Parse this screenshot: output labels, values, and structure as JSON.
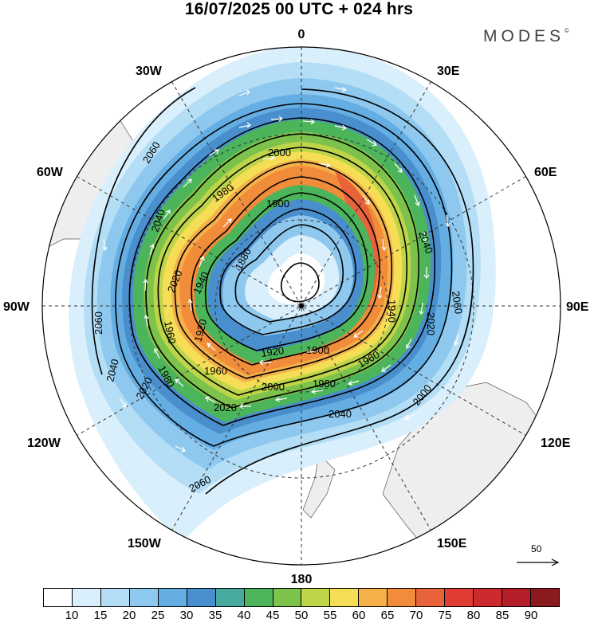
{
  "title": "16/07/2025  00 UTC  + 024 hrs",
  "logo": "MODES",
  "logo_mark": "©",
  "projection": "polar stereographic, south pole centred",
  "longitude_labels": {
    "top": "0",
    "bottom": "180",
    "left": "90W",
    "right": "90E",
    "upper_left_30": "30W",
    "upper_left_60": "60W",
    "upper_right_30": "30E",
    "upper_right_60": "60E",
    "lower_left_120": "120W",
    "lower_left_150": "150W",
    "lower_right_120": "120E",
    "lower_right_150": "150E"
  },
  "contour_labels": [
    "2060",
    "2040",
    "2000",
    "1980",
    "1900",
    "1880",
    "1940",
    "1920",
    "2020",
    "2040",
    "2060",
    "1940",
    "2020",
    "1960",
    "1980",
    "1960",
    "1920",
    "1900",
    "1960",
    "1980",
    "2000",
    "2020",
    "2040",
    "2000",
    "2060",
    "2060",
    "2040",
    "2020"
  ],
  "contour_values": [
    1860,
    1880,
    1900,
    1920,
    1940,
    1960,
    1980,
    2000,
    2020,
    2040,
    2060
  ],
  "vector_reference": "50",
  "colorbar": {
    "ticks": [
      "10",
      "15",
      "20",
      "25",
      "30",
      "35",
      "40",
      "45",
      "50",
      "55",
      "60",
      "65",
      "70",
      "75",
      "80",
      "85",
      "90"
    ],
    "colors": [
      "#ffffff",
      "#d9effb",
      "#b3def6",
      "#8ec8ee",
      "#64aee3",
      "#4a8fcd",
      "#48a99f",
      "#4cb45a",
      "#7dc24a",
      "#bed54a",
      "#f5dd55",
      "#f5b04a",
      "#f08c3a",
      "#e8623a",
      "#e03c34",
      "#cc2a2e",
      "#b31e28",
      "#8b1a1e"
    ]
  }
}
